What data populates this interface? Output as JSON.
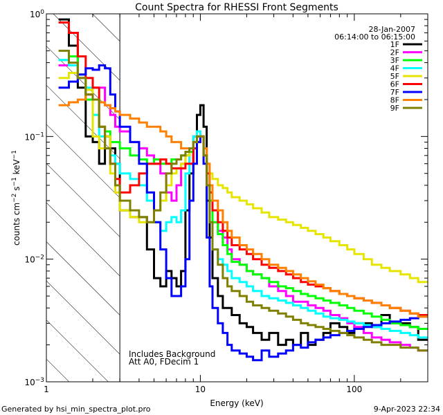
{
  "chart_data": {
    "type": "line",
    "title": "Count Spectra for RHESSI Front Segments",
    "xlabel": "Energy (keV)",
    "ylabel": "counts cm-2 s-1 keV-1",
    "ylabel_parts": {
      "base": "counts cm",
      "e1": "−2",
      "mid": " s",
      "e2": "−1",
      "end": " keV",
      "e3": "−1"
    },
    "xscale": "log",
    "yscale": "log",
    "xlim": [
      1,
      300
    ],
    "ylim": [
      0.001,
      1
    ],
    "x_ticks": [
      {
        "v": 1,
        "label": "1"
      },
      {
        "v": 10,
        "label": "10"
      },
      {
        "v": 100,
        "label": "100"
      }
    ],
    "y_ticks": [
      {
        "v": 1,
        "base": "10",
        "exp": "0"
      },
      {
        "v": 0.1,
        "base": "10",
        "exp": "−1"
      },
      {
        "v": 0.01,
        "base": "10",
        "exp": "−2"
      },
      {
        "v": 0.001,
        "base": "10",
        "exp": "−3"
      }
    ],
    "legend": {
      "placement": "top-right",
      "date": "28-Jan-2007",
      "time_range": "06:14:00 to 06:15:00"
    },
    "annotations": [
      "Includes Background",
      "Att A0, FDecim 1"
    ],
    "shaded_region": {
      "x_from": 1,
      "x_to": 3,
      "style": "diagonal-hatch"
    },
    "energy_edges": [
      1.2,
      1.4,
      1.6,
      1.8,
      2.0,
      2.2,
      2.4,
      2.6,
      2.8,
      3.0,
      3.5,
      4.0,
      4.5,
      5.0,
      5.5,
      6.0,
      6.5,
      7.0,
      7.5,
      8.0,
      8.5,
      9.0,
      9.5,
      10.0,
      10.5,
      11.0,
      11.5,
      12.0,
      13.0,
      14.0,
      15.0,
      16.0,
      18.0,
      20.0,
      22.0,
      25.0,
      28.0,
      32.0,
      36.0,
      40.0,
      45.0,
      50.0,
      56.0,
      63.0,
      70.0,
      80.0,
      90.0,
      100.0,
      115.0,
      130.0,
      150.0,
      170.0,
      200.0,
      230.0,
      260.0,
      300.0
    ],
    "series": [
      {
        "name": "1F",
        "color": "#000000",
        "values": [
          0.9,
          0.55,
          0.25,
          0.1,
          0.09,
          0.06,
          0.1,
          0.08,
          0.06,
          0.025,
          0.022,
          0.022,
          0.012,
          0.007,
          0.006,
          0.008,
          0.007,
          0.006,
          0.008,
          0.025,
          0.05,
          0.1,
          0.15,
          0.18,
          0.12,
          0.03,
          0.015,
          0.007,
          0.005,
          0.004,
          0.004,
          0.0035,
          0.003,
          0.0028,
          0.0025,
          0.0022,
          0.0025,
          0.002,
          0.0022,
          0.002,
          0.0025,
          0.002,
          0.0022,
          0.0025,
          0.003,
          0.0028,
          0.0025,
          0.003,
          0.003,
          0.0028,
          0.0035,
          0.003,
          0.003,
          0.0028,
          0.0022
        ]
      },
      {
        "name": "2F",
        "color": "#ff00ff",
        "values": [
          0.38,
          0.45,
          0.3,
          0.22,
          0.25,
          0.25,
          0.18,
          0.15,
          0.12,
          0.11,
          0.09,
          0.08,
          0.07,
          0.06,
          0.05,
          0.035,
          0.03,
          0.04,
          0.06,
          0.07,
          0.06,
          0.08,
          0.09,
          0.1,
          0.08,
          0.05,
          0.03,
          0.02,
          0.017,
          0.015,
          0.012,
          0.01,
          0.009,
          0.008,
          0.0075,
          0.007,
          0.006,
          0.0055,
          0.005,
          0.0045,
          0.0045,
          0.0042,
          0.004,
          0.0038,
          0.0035,
          0.0033,
          0.003,
          0.0028,
          0.0025,
          0.0023,
          0.0022,
          0.0021,
          0.002,
          0.0019,
          0.0018
        ]
      },
      {
        "name": "3F",
        "color": "#00ff00",
        "values": [
          0.42,
          0.45,
          0.32,
          0.2,
          0.15,
          0.12,
          0.11,
          0.09,
          0.09,
          0.08,
          0.07,
          0.065,
          0.06,
          0.065,
          0.06,
          0.06,
          0.065,
          0.065,
          0.07,
          0.07,
          0.075,
          0.09,
          0.1,
          0.1,
          0.07,
          0.05,
          0.03,
          0.02,
          0.016,
          0.013,
          0.011,
          0.0095,
          0.009,
          0.008,
          0.0075,
          0.007,
          0.0065,
          0.006,
          0.0058,
          0.0055,
          0.0052,
          0.005,
          0.0048,
          0.0046,
          0.0044,
          0.0042,
          0.004,
          0.0038,
          0.0036,
          0.0034,
          0.0032,
          0.003,
          0.0029,
          0.0028,
          0.0027
        ]
      },
      {
        "name": "4F",
        "color": "#00ffff",
        "values": [
          0.42,
          0.38,
          0.3,
          0.25,
          0.15,
          0.1,
          0.08,
          0.07,
          0.06,
          0.05,
          0.045,
          0.04,
          0.03,
          0.02,
          0.017,
          0.02,
          0.022,
          0.02,
          0.025,
          0.05,
          0.08,
          0.1,
          0.11,
          0.1,
          0.07,
          0.04,
          0.02,
          0.012,
          0.01,
          0.009,
          0.008,
          0.007,
          0.0065,
          0.006,
          0.0055,
          0.005,
          0.0048,
          0.0046,
          0.0044,
          0.0042,
          0.004,
          0.0038,
          0.0036,
          0.0034,
          0.0033,
          0.0032,
          0.0031,
          0.003,
          0.0029,
          0.0028,
          0.0027,
          0.0026,
          0.0025,
          0.0024,
          0.0023
        ]
      },
      {
        "name": "5F",
        "color": "#e5e500",
        "values": [
          0.3,
          0.33,
          0.3,
          0.24,
          0.1,
          0.08,
          0.1,
          0.05,
          0.035,
          0.025,
          0.022,
          0.02,
          0.02,
          0.025,
          0.03,
          0.04,
          0.05,
          0.055,
          0.06,
          0.07,
          0.08,
          0.09,
          0.1,
          0.1,
          0.08,
          0.06,
          0.05,
          0.045,
          0.04,
          0.038,
          0.035,
          0.032,
          0.03,
          0.028,
          0.026,
          0.024,
          0.022,
          0.021,
          0.02,
          0.019,
          0.018,
          0.017,
          0.016,
          0.015,
          0.014,
          0.013,
          0.012,
          0.011,
          0.01,
          0.009,
          0.0085,
          0.008,
          0.0075,
          0.007,
          0.0065
        ]
      },
      {
        "name": "6F",
        "color": "#ff0000",
        "values": [
          0.85,
          0.7,
          0.45,
          0.3,
          0.25,
          0.12,
          0.08,
          0.06,
          0.045,
          0.035,
          0.04,
          0.05,
          0.06,
          0.06,
          0.065,
          0.06,
          0.055,
          0.055,
          0.055,
          0.06,
          0.06,
          0.08,
          0.1,
          0.1,
          0.07,
          0.05,
          0.035,
          0.025,
          0.02,
          0.017,
          0.015,
          0.013,
          0.012,
          0.011,
          0.01,
          0.009,
          0.0085,
          0.008,
          0.0075,
          0.007,
          0.0065,
          0.0062,
          0.006,
          0.0058,
          0.0055,
          0.0052,
          0.005,
          0.0048,
          0.0046,
          0.0044,
          0.0042,
          0.004,
          0.0038,
          0.0036,
          0.0035
        ]
      },
      {
        "name": "7F",
        "color": "#0000ff",
        "values": [
          0.25,
          0.28,
          0.32,
          0.36,
          0.35,
          0.38,
          0.36,
          0.22,
          0.16,
          0.12,
          0.09,
          0.06,
          0.035,
          0.02,
          0.012,
          0.007,
          0.005,
          0.005,
          0.006,
          0.01,
          0.03,
          0.06,
          0.09,
          0.1,
          0.06,
          0.015,
          0.006,
          0.004,
          0.003,
          0.0025,
          0.002,
          0.0018,
          0.0017,
          0.0016,
          0.0015,
          0.0018,
          0.0016,
          0.0017,
          0.0018,
          0.002,
          0.0019,
          0.0021,
          0.0022,
          0.0023,
          0.0024,
          0.0025,
          0.0026,
          0.0027,
          0.0028,
          0.0029,
          0.003,
          0.0031,
          0.0032,
          0.0033,
          0.0034
        ]
      },
      {
        "name": "8F",
        "color": "#ff8000",
        "values": [
          0.18,
          0.19,
          0.2,
          0.22,
          0.2,
          0.19,
          0.18,
          0.17,
          0.16,
          0.15,
          0.14,
          0.13,
          0.12,
          0.12,
          0.11,
          0.1,
          0.09,
          0.09,
          0.08,
          0.08,
          0.08,
          0.09,
          0.1,
          0.1,
          0.08,
          0.06,
          0.04,
          0.03,
          0.025,
          0.02,
          0.017,
          0.015,
          0.013,
          0.012,
          0.011,
          0.01,
          0.009,
          0.0085,
          0.008,
          0.0075,
          0.007,
          0.0066,
          0.0062,
          0.0058,
          0.0055,
          0.0052,
          0.005,
          0.0048,
          0.0046,
          0.0044,
          0.0042,
          0.004,
          0.0038,
          0.0036,
          0.0034
        ]
      },
      {
        "name": "9F",
        "color": "#808000",
        "values": [
          0.5,
          0.4,
          0.3,
          0.22,
          0.2,
          0.12,
          0.08,
          0.06,
          0.04,
          0.03,
          0.025,
          0.022,
          0.02,
          0.025,
          0.035,
          0.05,
          0.06,
          0.065,
          0.07,
          0.075,
          0.08,
          0.09,
          0.1,
          0.1,
          0.07,
          0.04,
          0.02,
          0.012,
          0.009,
          0.007,
          0.006,
          0.0055,
          0.005,
          0.0045,
          0.0042,
          0.004,
          0.0038,
          0.0036,
          0.0034,
          0.0032,
          0.003,
          0.0029,
          0.0028,
          0.0027,
          0.0026,
          0.0025,
          0.0024,
          0.0023,
          0.0022,
          0.0021,
          0.002,
          0.002,
          0.0019,
          0.0019,
          0.0018
        ]
      }
    ]
  },
  "footer": {
    "generated_by": "Generated by hsi_min_spectra_plot.pro",
    "timestamp": "9-Apr-2023 22:34"
  }
}
